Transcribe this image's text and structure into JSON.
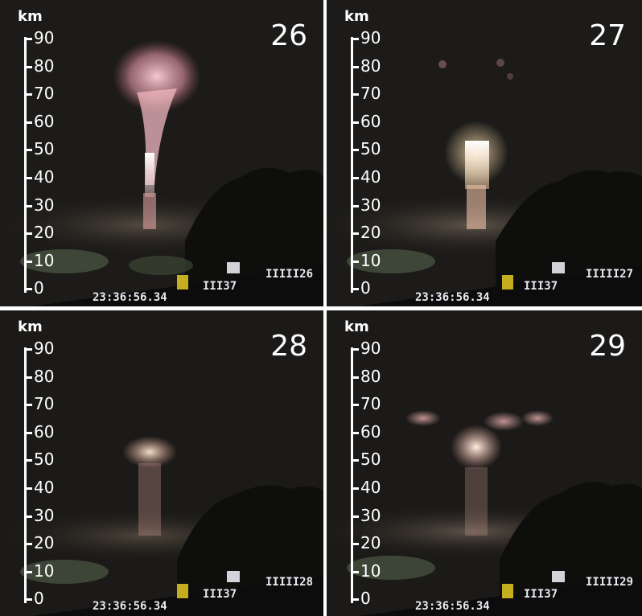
{
  "axis": {
    "unit": "km",
    "ticks": [
      "90",
      "80",
      "70",
      "60",
      "50",
      "40",
      "30",
      "20",
      "10",
      "0"
    ]
  },
  "frames": [
    {
      "number": "26",
      "camera_label": "IIIII26",
      "time_text": "23:36:56.34",
      "code": "III37"
    },
    {
      "number": "27",
      "camera_label": "IIIII27",
      "time_text": "23:36:56.34",
      "code": "III37"
    },
    {
      "number": "28",
      "camera_label": "IIIII28",
      "time_text": "23:36:56.34",
      "code": "III37"
    },
    {
      "number": "29",
      "camera_label": "IIIII29",
      "time_text": "23:36:56.34",
      "code": "III37"
    }
  ]
}
